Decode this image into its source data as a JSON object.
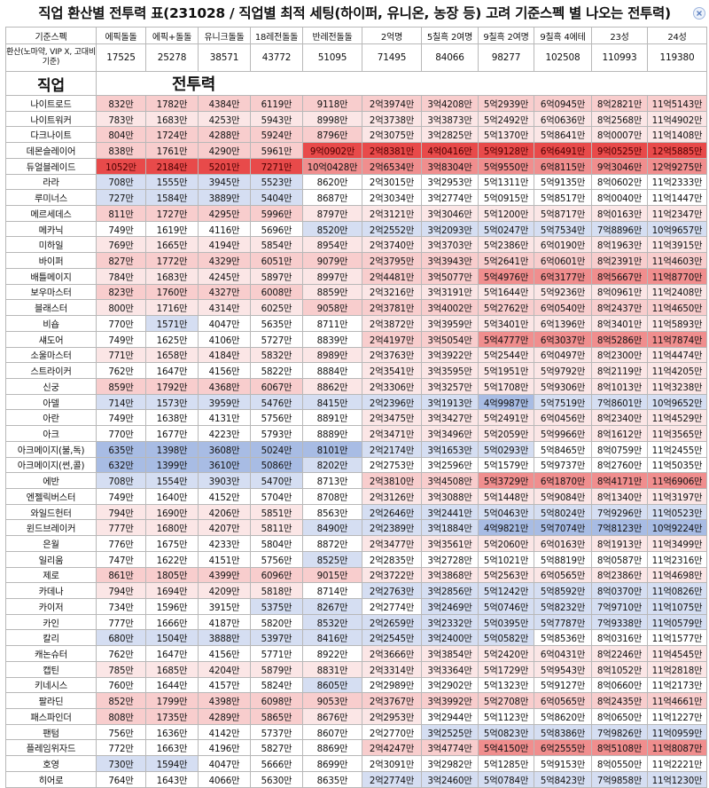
{
  "title": "직업 환산별 전투력 표(231028 / 직업별 최적 세팅(하이퍼, 유니온, 농장 등) 고려 기준스펙 별 나오는 전투력)",
  "header": {
    "spec_label": "기준스펙",
    "columns": [
      "에픽돌돌",
      "에픽+돌돌",
      "유니크돌돌",
      "18레전돌돌",
      "반레전돌돌",
      "2억명",
      "5칠흑 2여명",
      "9칠흑 2여명",
      "9칠흑 4에테",
      "23성",
      "24성"
    ],
    "base_label": "환산(노마약, VIP X, 고대비 기준)",
    "base_values": [
      "17525",
      "25278",
      "38571",
      "43772",
      "51095",
      "71495",
      "84066",
      "98277",
      "102508",
      "110993",
      "119380"
    ],
    "job_header": "직업",
    "power_header": "전투력"
  },
  "colors": {
    "deep_red": "#e84a4a",
    "red": "#f08e8e",
    "pink": "#f8cdcd",
    "light": "#fbe6e6",
    "white": "#ffffff",
    "pale_blue": "#d5def2",
    "blue": "#a8bce4",
    "deep_blue": "#6a8cd4"
  },
  "rows": [
    {
      "job": "나이트로드",
      "v": [
        "832만",
        "1782만",
        "4384만",
        "6119만",
        "9118만",
        "2억3974만",
        "3억4208만",
        "5억2939만",
        "6억0945만",
        "8억2821만",
        "11억5143만"
      ],
      "c": [
        "p",
        "p",
        "p",
        "p",
        "p",
        "p",
        "p",
        "p",
        "p",
        "p",
        "p"
      ]
    },
    {
      "job": "나이트워커",
      "v": [
        "783만",
        "1683만",
        "4253만",
        "5943만",
        "8998만",
        "2억3738만",
        "3억3873만",
        "5억2492만",
        "6억0636만",
        "8억2568만",
        "11억4902만"
      ],
      "c": [
        "l",
        "l",
        "l",
        "l",
        "l",
        "l",
        "l",
        "l",
        "l",
        "l",
        "l"
      ]
    },
    {
      "job": "다크나이트",
      "v": [
        "804만",
        "1724만",
        "4288만",
        "5924만",
        "8796만",
        "2억3075만",
        "3억2825만",
        "5억1370만",
        "5억8641만",
        "8억0007만",
        "11억1408만"
      ],
      "c": [
        "p",
        "p",
        "p",
        "p",
        "p",
        "l",
        "l",
        "l",
        "l",
        "l",
        "l"
      ]
    },
    {
      "job": "데몬슬레이어",
      "v": [
        "838만",
        "1761만",
        "4290만",
        "5961만",
        "9억0902만",
        "2억8381만",
        "4억0416만",
        "5억9128만",
        "6억6491만",
        "9억0525만",
        "12억5885만"
      ],
      "c": [
        "p",
        "p",
        "p",
        "p",
        "R",
        "R",
        "R",
        "R",
        "R",
        "R",
        "R"
      ]
    },
    {
      "job": "듀얼블레이드",
      "v": [
        "1052만",
        "2184만",
        "5201만",
        "7271만",
        "10억0428만",
        "2억6534만",
        "3억8304만",
        "5억9550만",
        "6억8115만",
        "9억3046만",
        "12억9275만"
      ],
      "c": [
        "R",
        "R",
        "R",
        "R",
        "r",
        "r",
        "r",
        "r",
        "r",
        "r",
        "r"
      ]
    },
    {
      "job": "라라",
      "v": [
        "708만",
        "1555만",
        "3945만",
        "5523만",
        "8620만",
        "2억3015만",
        "3억2953만",
        "5억1311만",
        "5억9135만",
        "8억0602만",
        "11억2333만"
      ],
      "c": [
        "b",
        "b",
        "b",
        "b",
        "w",
        "w",
        "w",
        "w",
        "w",
        "w",
        "w"
      ]
    },
    {
      "job": "루미너스",
      "v": [
        "727만",
        "1584만",
        "3889만",
        "5404만",
        "8687만",
        "2억3034만",
        "3억2774만",
        "5억0915만",
        "5억8517만",
        "8억0040만",
        "11억1447만"
      ],
      "c": [
        "b",
        "b",
        "b",
        "b",
        "w",
        "w",
        "w",
        "w",
        "w",
        "w",
        "w"
      ]
    },
    {
      "job": "메르세데스",
      "v": [
        "811만",
        "1727만",
        "4295만",
        "5996만",
        "8797만",
        "2억3121만",
        "3억3046만",
        "5억1200만",
        "5억8717만",
        "8억0163만",
        "11억2347만"
      ],
      "c": [
        "p",
        "p",
        "p",
        "p",
        "l",
        "l",
        "l",
        "l",
        "l",
        "l",
        "l"
      ]
    },
    {
      "job": "메카닉",
      "v": [
        "749만",
        "1619만",
        "4116만",
        "5696만",
        "8520만",
        "2억2552만",
        "3억2093만",
        "5억0247만",
        "5억7534만",
        "7억8896만",
        "10억9657만"
      ],
      "c": [
        "w",
        "w",
        "w",
        "w",
        "b",
        "b",
        "b",
        "b",
        "b",
        "b",
        "b"
      ]
    },
    {
      "job": "미하일",
      "v": [
        "769만",
        "1665만",
        "4194만",
        "5854만",
        "8954만",
        "2억3740만",
        "3억3703만",
        "5억2386만",
        "6억0190만",
        "8억1963만",
        "11억3915만"
      ],
      "c": [
        "l",
        "l",
        "l",
        "l",
        "l",
        "l",
        "l",
        "l",
        "l",
        "l",
        "l"
      ]
    },
    {
      "job": "바이퍼",
      "v": [
        "827만",
        "1772만",
        "4329만",
        "6051만",
        "9079만",
        "2억3795만",
        "3억3943만",
        "5억2641만",
        "6억0601만",
        "8억2391만",
        "11억4603만"
      ],
      "c": [
        "p",
        "p",
        "p",
        "p",
        "p",
        "p",
        "p",
        "p",
        "p",
        "p",
        "p"
      ]
    },
    {
      "job": "배틀메이지",
      "v": [
        "784만",
        "1683만",
        "4245만",
        "5897만",
        "8997만",
        "2억4481만",
        "3억5077만",
        "5억4976만",
        "6억3177만",
        "8억5667만",
        "11억8770만"
      ],
      "c": [
        "l",
        "l",
        "l",
        "l",
        "l",
        "p",
        "p",
        "r",
        "r",
        "r",
        "r"
      ]
    },
    {
      "job": "보우마스터",
      "v": [
        "823만",
        "1760만",
        "4327만",
        "6008만",
        "8859만",
        "2억3216만",
        "3억3191만",
        "5억1644만",
        "5억9236만",
        "8억0961만",
        "11억2408만"
      ],
      "c": [
        "p",
        "p",
        "p",
        "p",
        "l",
        "l",
        "l",
        "l",
        "l",
        "l",
        "l"
      ]
    },
    {
      "job": "블래스터",
      "v": [
        "800만",
        "1716만",
        "4314만",
        "6025만",
        "9058만",
        "2억3781만",
        "3억4002만",
        "5억2762만",
        "6억0540만",
        "8억2437만",
        "11억4650만"
      ],
      "c": [
        "l",
        "l",
        "l",
        "l",
        "p",
        "p",
        "p",
        "p",
        "p",
        "p",
        "p"
      ]
    },
    {
      "job": "비숍",
      "v": [
        "770만",
        "1571만",
        "4047만",
        "5635만",
        "8711만",
        "2억3872만",
        "3억3959만",
        "5억3401만",
        "6억1396만",
        "8억3401만",
        "11억5893만"
      ],
      "c": [
        "w",
        "b",
        "w",
        "w",
        "w",
        "l",
        "l",
        "l",
        "l",
        "l",
        "l"
      ]
    },
    {
      "job": "섀도어",
      "v": [
        "749만",
        "1625만",
        "4106만",
        "5727만",
        "8839만",
        "2억4197만",
        "3억5054만",
        "5억4777만",
        "6억3037만",
        "8억5286만",
        "11억7874만"
      ],
      "c": [
        "w",
        "w",
        "w",
        "w",
        "w",
        "p",
        "p",
        "r",
        "r",
        "r",
        "r"
      ]
    },
    {
      "job": "소울마스터",
      "v": [
        "771만",
        "1658만",
        "4184만",
        "5832만",
        "8989만",
        "2억3763만",
        "3억3922만",
        "5억2544만",
        "6억0497만",
        "8억2300만",
        "11억4474만"
      ],
      "c": [
        "l",
        "l",
        "l",
        "l",
        "l",
        "l",
        "l",
        "l",
        "l",
        "l",
        "l"
      ]
    },
    {
      "job": "스트라이커",
      "v": [
        "762만",
        "1647만",
        "4156만",
        "5822만",
        "8884만",
        "2억3541만",
        "3억3595만",
        "5억1951만",
        "5억9792만",
        "8억2119만",
        "11억4205만"
      ],
      "c": [
        "w",
        "w",
        "w",
        "w",
        "w",
        "l",
        "l",
        "l",
        "l",
        "l",
        "l"
      ]
    },
    {
      "job": "신궁",
      "v": [
        "859만",
        "1792만",
        "4368만",
        "6067만",
        "8862만",
        "2억3306만",
        "3억3257만",
        "5억1708만",
        "5억9306만",
        "8억1013만",
        "11억3238만"
      ],
      "c": [
        "p",
        "p",
        "p",
        "p",
        "l",
        "l",
        "l",
        "l",
        "l",
        "l",
        "l"
      ]
    },
    {
      "job": "아델",
      "v": [
        "714만",
        "1573만",
        "3959만",
        "5476만",
        "8415만",
        "2억2396만",
        "3억1913만",
        "4억9987만",
        "5억7519만",
        "7억8601만",
        "10억9652만"
      ],
      "c": [
        "b",
        "b",
        "b",
        "b",
        "b",
        "b",
        "b",
        "B",
        "b",
        "b",
        "b"
      ]
    },
    {
      "job": "아란",
      "v": [
        "749만",
        "1638만",
        "4131만",
        "5756만",
        "8891만",
        "2억3475만",
        "3억3427만",
        "5억2491만",
        "6억0456만",
        "8억2340만",
        "11억4529만"
      ],
      "c": [
        "w",
        "w",
        "w",
        "w",
        "w",
        "l",
        "l",
        "l",
        "l",
        "l",
        "l"
      ]
    },
    {
      "job": "아크",
      "v": [
        "770만",
        "1677만",
        "4223만",
        "5793만",
        "8889만",
        "2억3471만",
        "3억3496만",
        "5억2059만",
        "5억9966만",
        "8억1612만",
        "11억3565만"
      ],
      "c": [
        "w",
        "w",
        "w",
        "w",
        "w",
        "l",
        "l",
        "l",
        "l",
        "l",
        "l"
      ]
    },
    {
      "job": "아크메이지(불,독)",
      "v": [
        "635만",
        "1398만",
        "3608만",
        "5024만",
        "8101만",
        "2억2174만",
        "3억1653만",
        "5억0293만",
        "5억8465만",
        "8억0759만",
        "11억2455만"
      ],
      "c": [
        "B",
        "B",
        "B",
        "B",
        "B",
        "b",
        "b",
        "b",
        "w",
        "w",
        "w"
      ]
    },
    {
      "job": "아크메이지(썬,콜)",
      "v": [
        "632만",
        "1399만",
        "3610만",
        "5086만",
        "8202만",
        "2억2753만",
        "3억2596만",
        "5억1579만",
        "5억9737만",
        "8억2760만",
        "11억5035만"
      ],
      "c": [
        "B",
        "B",
        "B",
        "B",
        "b",
        "w",
        "w",
        "w",
        "w",
        "w",
        "w"
      ]
    },
    {
      "job": "에반",
      "v": [
        "708만",
        "1554만",
        "3903만",
        "5470만",
        "8713만",
        "2억3810만",
        "3억4508만",
        "5억3729만",
        "6억1870만",
        "8억4171만",
        "11억6906만"
      ],
      "c": [
        "b",
        "b",
        "b",
        "b",
        "w",
        "p",
        "p",
        "r",
        "r",
        "r",
        "r"
      ]
    },
    {
      "job": "엔젤릭버스터",
      "v": [
        "749만",
        "1640만",
        "4152만",
        "5704만",
        "8708만",
        "2억3126만",
        "3억3088만",
        "5억1448만",
        "5억9084만",
        "8억1340만",
        "11억3197만"
      ],
      "c": [
        "w",
        "w",
        "w",
        "w",
        "w",
        "l",
        "l",
        "l",
        "l",
        "l",
        "l"
      ]
    },
    {
      "job": "와일드헌터",
      "v": [
        "794만",
        "1690만",
        "4206만",
        "5851만",
        "8563만",
        "2억2646만",
        "3억2441만",
        "5억0463만",
        "5억8024만",
        "7억9296만",
        "11억0523만"
      ],
      "c": [
        "l",
        "l",
        "l",
        "l",
        "w",
        "b",
        "b",
        "b",
        "b",
        "b",
        "b"
      ]
    },
    {
      "job": "윈드브레이커",
      "v": [
        "777만",
        "1680만",
        "4207만",
        "5811만",
        "8490만",
        "2억2389만",
        "3억1884만",
        "4억9821만",
        "5억7074만",
        "7억8123만",
        "10억9224만"
      ],
      "c": [
        "l",
        "l",
        "l",
        "l",
        "b",
        "b",
        "b",
        "B",
        "B",
        "B",
        "B"
      ]
    },
    {
      "job": "은월",
      "v": [
        "776만",
        "1675만",
        "4233만",
        "5804만",
        "8872만",
        "2억3477만",
        "3억3561만",
        "5억2060만",
        "6억0163만",
        "8억1913만",
        "11억3499만"
      ],
      "c": [
        "w",
        "w",
        "w",
        "w",
        "w",
        "l",
        "l",
        "l",
        "l",
        "l",
        "l"
      ]
    },
    {
      "job": "일리움",
      "v": [
        "747만",
        "1622만",
        "4151만",
        "5756만",
        "8525만",
        "2억2835만",
        "3억2728만",
        "5억1021만",
        "5억8819만",
        "8억0587만",
        "11억2316만"
      ],
      "c": [
        "w",
        "w",
        "w",
        "w",
        "b",
        "w",
        "w",
        "w",
        "w",
        "w",
        "w"
      ]
    },
    {
      "job": "제로",
      "v": [
        "861만",
        "1805만",
        "4399만",
        "6096만",
        "9015만",
        "2억3722만",
        "3억3868만",
        "5억2563만",
        "6억0565만",
        "8억2386만",
        "11억4698만"
      ],
      "c": [
        "p",
        "p",
        "p",
        "p",
        "p",
        "l",
        "l",
        "l",
        "l",
        "l",
        "l"
      ]
    },
    {
      "job": "카데나",
      "v": [
        "794만",
        "1694만",
        "4209만",
        "5818만",
        "8714만",
        "2억2763만",
        "3억2856만",
        "5억1242만",
        "5억8592만",
        "8억0370만",
        "11억0826만"
      ],
      "c": [
        "l",
        "l",
        "l",
        "l",
        "w",
        "b",
        "b",
        "b",
        "b",
        "b",
        "b"
      ]
    },
    {
      "job": "카이저",
      "v": [
        "734만",
        "1596만",
        "3915만",
        "5375만",
        "8267만",
        "2억2774만",
        "3억2469만",
        "5억0746만",
        "5억8232만",
        "7억9710만",
        "11억1075만"
      ],
      "c": [
        "w",
        "w",
        "w",
        "b",
        "b",
        "w",
        "b",
        "b",
        "b",
        "b",
        "b"
      ]
    },
    {
      "job": "카인",
      "v": [
        "777만",
        "1666만",
        "4187만",
        "5820만",
        "8532만",
        "2억2659만",
        "3억2332만",
        "5억0395만",
        "5억7787만",
        "7억9338만",
        "11억0579만"
      ],
      "c": [
        "w",
        "w",
        "w",
        "w",
        "b",
        "b",
        "b",
        "b",
        "b",
        "b",
        "b"
      ]
    },
    {
      "job": "칼리",
      "v": [
        "680만",
        "1504만",
        "3888만",
        "5397만",
        "8416만",
        "2억2545만",
        "3억2400만",
        "5억0582만",
        "5억8536만",
        "8억0316만",
        "11억1577만"
      ],
      "c": [
        "b",
        "b",
        "b",
        "b",
        "b",
        "b",
        "b",
        "b",
        "w",
        "w",
        "w"
      ]
    },
    {
      "job": "캐논슈터",
      "v": [
        "762만",
        "1647만",
        "4156만",
        "5771만",
        "8922만",
        "2억3666만",
        "3억3854만",
        "5억2420만",
        "6억0431만",
        "8억2246만",
        "11억4545만"
      ],
      "c": [
        "w",
        "w",
        "w",
        "w",
        "w",
        "l",
        "l",
        "l",
        "l",
        "l",
        "l"
      ]
    },
    {
      "job": "캡틴",
      "v": [
        "785만",
        "1685만",
        "4204만",
        "5879만",
        "8831만",
        "2억3314만",
        "3억3364만",
        "5억1729만",
        "5억9543만",
        "8억1052만",
        "11억2818만"
      ],
      "c": [
        "l",
        "l",
        "l",
        "l",
        "l",
        "l",
        "l",
        "l",
        "l",
        "l",
        "l"
      ]
    },
    {
      "job": "키네시스",
      "v": [
        "760만",
        "1644만",
        "4157만",
        "5824만",
        "8605만",
        "2억2989만",
        "3억2902만",
        "5억1323만",
        "5억9127만",
        "8억0660만",
        "11억2173만"
      ],
      "c": [
        "w",
        "w",
        "w",
        "w",
        "b",
        "w",
        "w",
        "w",
        "w",
        "w",
        "w"
      ]
    },
    {
      "job": "팔라딘",
      "v": [
        "852만",
        "1799만",
        "4398만",
        "6098만",
        "9053만",
        "2억3767만",
        "3억3992만",
        "5억2708만",
        "6억0565만",
        "8억2435만",
        "11억4661만"
      ],
      "c": [
        "p",
        "p",
        "p",
        "p",
        "p",
        "p",
        "p",
        "p",
        "p",
        "p",
        "p"
      ]
    },
    {
      "job": "패스파인더",
      "v": [
        "808만",
        "1735만",
        "4289만",
        "5865만",
        "8676만",
        "2억2953만",
        "3억2944만",
        "5억1123만",
        "5억8620만",
        "8억0650만",
        "11억1227만"
      ],
      "c": [
        "p",
        "p",
        "p",
        "p",
        "l",
        "l",
        "w",
        "w",
        "w",
        "w",
        "w"
      ]
    },
    {
      "job": "팬텀",
      "v": [
        "756만",
        "1636만",
        "4142만",
        "5737만",
        "8607만",
        "2억2770만",
        "3억2525만",
        "5억0823만",
        "5억8386만",
        "7억9826만",
        "11억0959만"
      ],
      "c": [
        "w",
        "w",
        "w",
        "w",
        "w",
        "w",
        "b",
        "b",
        "b",
        "b",
        "b"
      ]
    },
    {
      "job": "플레임위자드",
      "v": [
        "772만",
        "1663만",
        "4196만",
        "5827만",
        "8869만",
        "2억4247만",
        "3억4774만",
        "5억4150만",
        "6억2555만",
        "8억5108만",
        "11억8087만"
      ],
      "c": [
        "w",
        "w",
        "w",
        "w",
        "w",
        "p",
        "p",
        "r",
        "r",
        "r",
        "r"
      ]
    },
    {
      "job": "호영",
      "v": [
        "730만",
        "1594만",
        "4047만",
        "5666만",
        "8699만",
        "2억3091만",
        "3억2982만",
        "5억1285만",
        "5억9153만",
        "8억0550만",
        "11억2221만"
      ],
      "c": [
        "b",
        "b",
        "w",
        "w",
        "w",
        "w",
        "w",
        "w",
        "w",
        "w",
        "w"
      ]
    },
    {
      "job": "히어로",
      "v": [
        "764만",
        "1643만",
        "4066만",
        "5630만",
        "8635만",
        "2억2774만",
        "3억2460만",
        "5억0784만",
        "5억8423만",
        "7억9858만",
        "11억1230만"
      ],
      "c": [
        "w",
        "w",
        "w",
        "w",
        "w",
        "b",
        "b",
        "b",
        "b",
        "b",
        "b"
      ]
    }
  ]
}
